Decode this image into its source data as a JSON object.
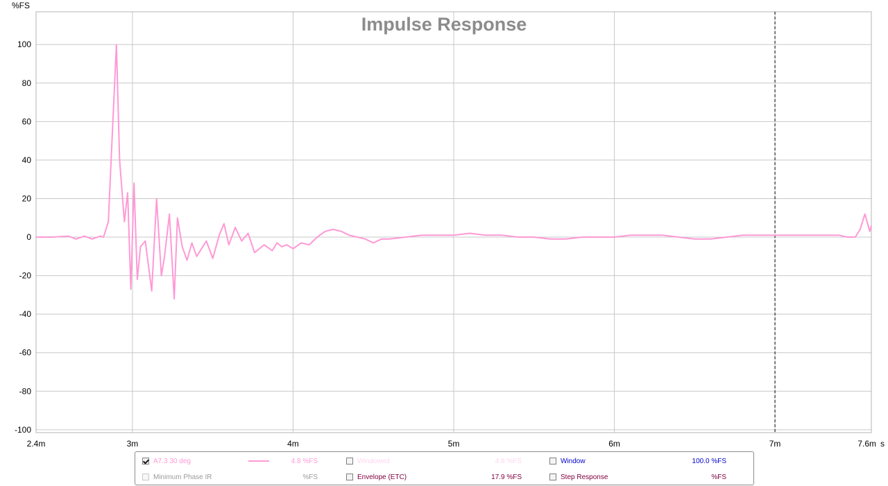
{
  "chart_data": {
    "type": "line",
    "title": "Impulse Response",
    "ylabel": "%FS",
    "xlabel_unit": "s",
    "x_unit_ticks": [
      "2.4m",
      "3m",
      "4m",
      "5m",
      "6m",
      "7m",
      "7.6m"
    ],
    "x_tick_values_ms": [
      2.4,
      3,
      4,
      5,
      6,
      7,
      7.6
    ],
    "y_ticks": [
      100,
      80,
      60,
      40,
      20,
      0,
      -20,
      -40,
      -60,
      -80,
      -100
    ],
    "xlim_ms": [
      2.4,
      7.6
    ],
    "ylim": [
      -101.5,
      117
    ],
    "grid": true,
    "window_marker_ms": 7.0,
    "series": [
      {
        "name": "A7.3 30 deg",
        "color": "#ff99d6",
        "x_ms": [
          2.4,
          2.5,
          2.6,
          2.65,
          2.7,
          2.75,
          2.8,
          2.82,
          2.85,
          2.87,
          2.9,
          2.92,
          2.95,
          2.97,
          2.99,
          3.01,
          3.03,
          3.05,
          3.08,
          3.12,
          3.15,
          3.18,
          3.2,
          3.23,
          3.26,
          3.28,
          3.31,
          3.34,
          3.37,
          3.4,
          3.43,
          3.46,
          3.5,
          3.54,
          3.57,
          3.6,
          3.64,
          3.68,
          3.72,
          3.76,
          3.82,
          3.87,
          3.9,
          3.93,
          3.96,
          4.0,
          4.05,
          4.1,
          4.15,
          4.2,
          4.25,
          4.3,
          4.35,
          4.4,
          4.45,
          4.5,
          4.55,
          4.6,
          4.7,
          4.8,
          4.9,
          5.0,
          5.1,
          5.2,
          5.3,
          5.4,
          5.5,
          5.6,
          5.7,
          5.8,
          5.9,
          6.0,
          6.1,
          6.2,
          6.3,
          6.4,
          6.5,
          6.6,
          6.7,
          6.8,
          6.9,
          7.0,
          7.1,
          7.2,
          7.3,
          7.4,
          7.45,
          7.5,
          7.53,
          7.56,
          7.59,
          7.6
        ],
        "values": [
          0,
          0,
          0.5,
          -1,
          0.5,
          -1,
          0.5,
          0,
          8,
          45,
          100,
          40,
          8,
          23,
          -27,
          28,
          -22,
          -5,
          -2,
          -28,
          20,
          -20,
          -10,
          12,
          -32,
          10,
          -5,
          -12,
          -3,
          -10,
          -6,
          -2,
          -11,
          1,
          7,
          -4,
          5,
          -2,
          2,
          -8,
          -4,
          -7,
          -3,
          -5,
          -4,
          -6,
          -3,
          -4,
          0,
          3,
          4,
          3,
          1,
          0,
          -1,
          -3,
          -1,
          -1,
          0,
          1,
          1,
          1,
          2,
          1,
          1,
          0,
          0,
          -1,
          -1,
          0,
          0,
          0,
          1,
          1,
          1,
          0,
          -1,
          -1,
          0,
          1,
          1,
          1,
          1,
          1,
          1,
          1,
          0,
          0,
          4,
          12,
          3,
          6
        ]
      }
    ]
  },
  "legend": {
    "items": [
      {
        "label": "A7.3 30 deg",
        "value": "4.8 %FS",
        "checked": true,
        "color": "#ff99d6",
        "enabled": true
      },
      {
        "label": "Windowed",
        "value": "4.8 %FS",
        "checked": false,
        "color": "#ffd6ee",
        "enabled": false
      },
      {
        "label": "Window",
        "value": "100.0 %FS",
        "checked": false,
        "color": "#0000cc",
        "enabled": true
      },
      {
        "label": "Minimum Phase IR",
        "value": "%FS",
        "checked": false,
        "color": "#9a9a9a",
        "enabled": false
      },
      {
        "label": "Envelope (ETC)",
        "value": "17.9 %FS",
        "checked": false,
        "color": "#800040",
        "enabled": true
      },
      {
        "label": "Step Response",
        "value": "%FS",
        "checked": false,
        "color": "#800040",
        "enabled": true
      }
    ]
  }
}
